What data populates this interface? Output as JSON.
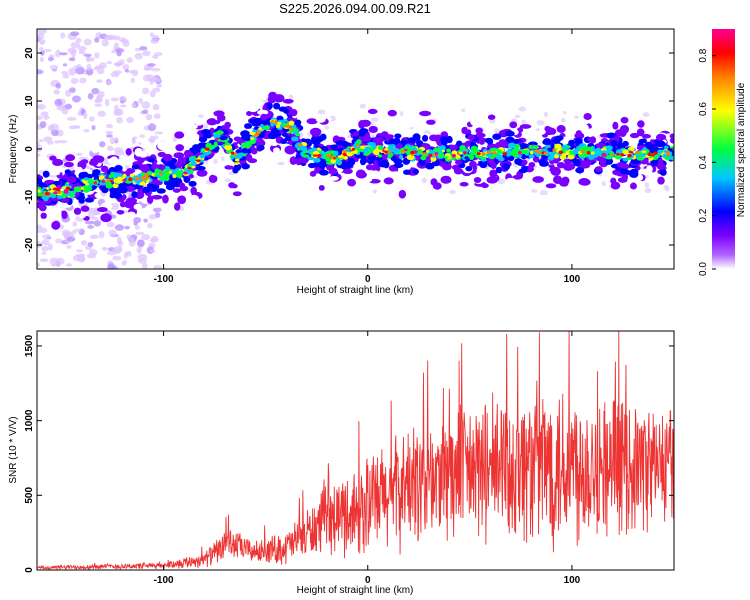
{
  "title": "S225.2026.094.00.09.R21",
  "chart_data": [
    {
      "type": "heatmap",
      "xlabel": "Height of straight line (km)",
      "ylabel": "Frequency (Hz)",
      "xlim": [
        -162,
        150
      ],
      "ylim": [
        -25,
        25
      ],
      "xticks": [
        -100,
        0,
        100
      ],
      "yticks": [
        -20,
        -10,
        0,
        10,
        20
      ],
      "colorbar": {
        "label": "Normalized spectral amplitude",
        "range": [
          0.0,
          0.9
        ],
        "ticks": [
          "0.0",
          "0.2",
          "0.4",
          "0.6",
          "0.8"
        ],
        "tick_values": [
          0.0,
          0.2,
          0.4,
          0.6,
          0.8
        ],
        "colors": [
          "#ffffff",
          "#7a00ff",
          "#0000ff",
          "#00c8ff",
          "#00ff40",
          "#ffff00",
          "#ff8000",
          "#ff0000",
          "#ff0090"
        ]
      },
      "ridge": [
        {
          "x": -158,
          "f": -9
        },
        {
          "x": -145,
          "f": -8.5
        },
        {
          "x": -130,
          "f": -6.5
        },
        {
          "x": -115,
          "f": -6.5
        },
        {
          "x": -100,
          "f": -5
        },
        {
          "x": -90,
          "f": -5
        },
        {
          "x": -80,
          "f": -1
        },
        {
          "x": -72,
          "f": 3
        },
        {
          "x": -64,
          "f": -2
        },
        {
          "x": -55,
          "f": 3
        },
        {
          "x": -48,
          "f": 5.5
        },
        {
          "x": -40,
          "f": 5
        },
        {
          "x": -36,
          "f": 4
        },
        {
          "x": -33,
          "f": 0
        },
        {
          "x": -25,
          "f": -1
        },
        {
          "x": -15,
          "f": -2
        },
        {
          "x": -5,
          "f": 0.5
        },
        {
          "x": 10,
          "f": -0.5
        },
        {
          "x": 40,
          "f": -1
        },
        {
          "x": 80,
          "f": -0.5
        },
        {
          "x": 120,
          "f": -1
        },
        {
          "x": 150,
          "f": -1
        }
      ]
    },
    {
      "type": "line",
      "xlabel": "Height of straight line (km)",
      "ylabel": "SNR (10 * V/V)",
      "xlim": [
        -162,
        150
      ],
      "ylim": [
        0,
        1600
      ],
      "xticks": [
        -100,
        0,
        100
      ],
      "yticks": [
        0,
        500,
        1000,
        1500
      ],
      "color": "#ee3333",
      "envelope": [
        {
          "x": -162,
          "base": 15,
          "amp": 15
        },
        {
          "x": -100,
          "base": 30,
          "amp": 25
        },
        {
          "x": -80,
          "base": 70,
          "amp": 60
        },
        {
          "x": -68,
          "base": 180,
          "amp": 120
        },
        {
          "x": -55,
          "base": 120,
          "amp": 80
        },
        {
          "x": -40,
          "base": 150,
          "amp": 130
        },
        {
          "x": -20,
          "base": 330,
          "amp": 250
        },
        {
          "x": 0,
          "base": 430,
          "amp": 380
        },
        {
          "x": 20,
          "base": 560,
          "amp": 450
        },
        {
          "x": 50,
          "base": 660,
          "amp": 520
        },
        {
          "x": 95,
          "base": 720,
          "amp": 650
        },
        {
          "x": 120,
          "base": 700,
          "amp": 520
        },
        {
          "x": 150,
          "base": 700,
          "amp": 450
        }
      ]
    }
  ]
}
